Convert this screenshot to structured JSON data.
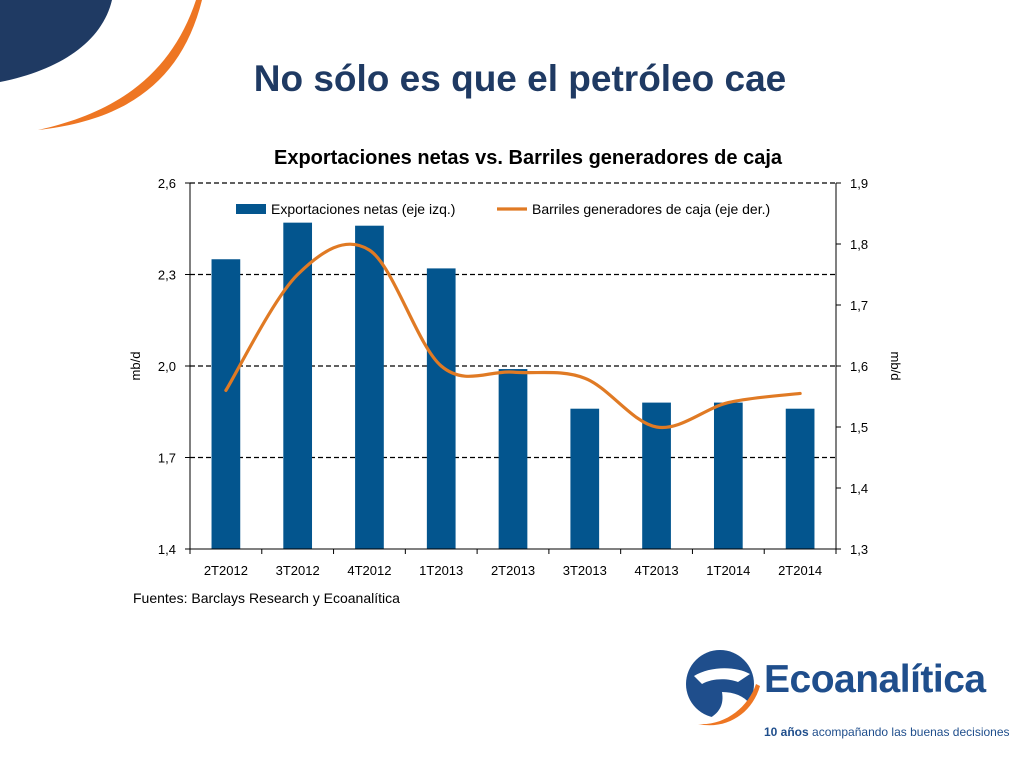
{
  "slide": {
    "title": "No sólo es que el petróleo cae",
    "source": "Fuentes: Barclays Research  y Ecoanalítica"
  },
  "logo": {
    "name": "Ecoanalítica",
    "tagline_bold": "10 años",
    "tagline_rest": " acompañando las buenas decisiones"
  },
  "colors": {
    "title": "#1f3a63",
    "bars": "#03558e",
    "line": "#e07a24",
    "deco_navy": "#1f3a63",
    "deco_orange": "#ee7623"
  },
  "chart_data": {
    "type": "bar",
    "title": "Exportaciones netas vs. Barriles generadores de caja",
    "categories": [
      "2T2012",
      "3T2012",
      "4T2012",
      "1T2013",
      "2T2013",
      "3T2013",
      "4T2013",
      "1T2014",
      "2T2014"
    ],
    "series": [
      {
        "name": "Exportaciones netas (eje izq.)",
        "type": "bar",
        "axis": "left",
        "values": [
          2.35,
          2.47,
          2.46,
          2.32,
          1.99,
          1.86,
          1.88,
          1.88,
          1.86
        ]
      },
      {
        "name": "Barriles generadores de caja (eje der.)",
        "type": "line",
        "axis": "right",
        "values": [
          1.56,
          1.75,
          1.79,
          1.6,
          1.59,
          1.58,
          1.5,
          1.54,
          1.555
        ]
      }
    ],
    "ylabel": "mb/d",
    "y2label": "mb/d",
    "ylim": [
      1.4,
      2.6
    ],
    "y2lim": [
      1.3,
      1.9
    ],
    "yticks": [
      "1,4",
      "1,7",
      "2,0",
      "2,3",
      "2,6"
    ],
    "y2ticks": [
      "1,3",
      "1,4",
      "1,5",
      "1,6",
      "1,7",
      "1,8",
      "1,9"
    ],
    "grid": "dashed horizontal",
    "legend": "top"
  }
}
